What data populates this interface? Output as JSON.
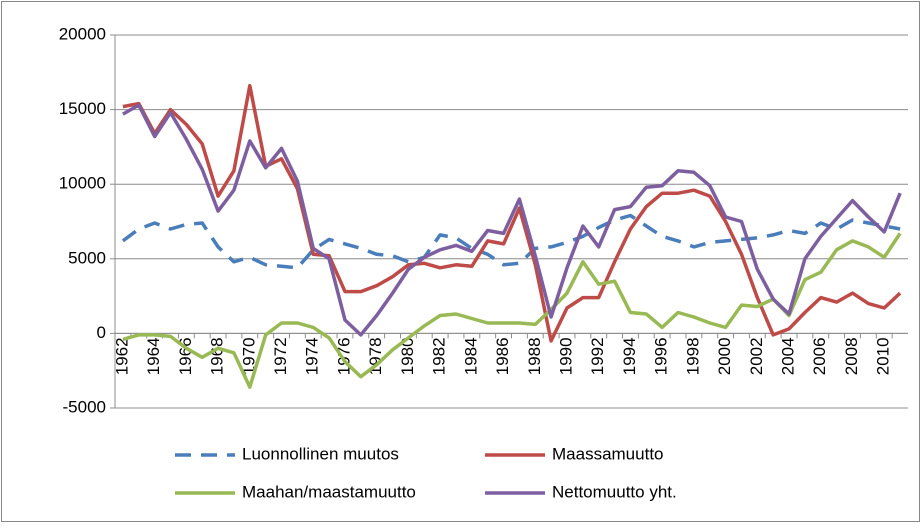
{
  "chart_data": {
    "type": "line",
    "categories": [
      1962,
      null,
      1964,
      null,
      1966,
      null,
      1968,
      null,
      1970,
      null,
      1972,
      null,
      1974,
      null,
      1976,
      null,
      1978,
      null,
      1980,
      null,
      1982,
      null,
      1984,
      null,
      1986,
      null,
      1988,
      null,
      1990,
      null,
      1992,
      null,
      1994,
      null,
      1996,
      null,
      1998,
      null,
      2000,
      null,
      2002,
      null,
      2004,
      null,
      2006,
      null,
      2008,
      null,
      2010,
      null
    ],
    "ylim": [
      -5000,
      20000
    ],
    "yticks": [
      -5000,
      0,
      5000,
      10000,
      15000,
      20000
    ],
    "grid": true,
    "series": [
      {
        "name": "Luonnollinen muutos",
        "color": "#4a7ebb",
        "dashed": true,
        "values": [
          6200,
          7000,
          7400,
          7000,
          7300,
          7400,
          5800,
          4800,
          5100,
          4600,
          4500,
          4400,
          5600,
          6300,
          6000,
          5700,
          5300,
          5200,
          4800,
          5100,
          6600,
          6400,
          5700,
          5300,
          4600,
          4700,
          5700,
          5800,
          6100,
          6500,
          7100,
          7600,
          7900,
          7200,
          6500,
          6200,
          5800,
          6100,
          6200,
          6300,
          6400,
          6600,
          6900,
          6700,
          7400,
          7000,
          7600,
          7400,
          7200,
          7000
        ]
      },
      {
        "name": "Maassamuutto",
        "color": "#be4b48",
        "values": [
          15200,
          15400,
          13400,
          15000,
          14000,
          12700,
          9200,
          10900,
          16600,
          11200,
          11700,
          9700,
          5300,
          5200,
          2800,
          2800,
          3200,
          3800,
          4600,
          4700,
          4400,
          4600,
          4500,
          6200,
          6000,
          8400,
          4600,
          -500,
          1700,
          2400,
          2400,
          4800,
          7000,
          8500,
          9400,
          9400,
          9600,
          9200,
          7500,
          5300,
          2400,
          -100,
          300,
          1400,
          2400,
          2100,
          2700,
          2000,
          1700,
          2700
        ]
      },
      {
        "name": "Maahan/maastamuutto",
        "color": "#98b954",
        "values": [
          -400,
          -100,
          -100,
          -200,
          -1000,
          -1600,
          -1000,
          -1300,
          -3600,
          -100,
          700,
          700,
          400,
          -300,
          -1900,
          -2900,
          -2100,
          -1100,
          -300,
          500,
          1200,
          1300,
          1000,
          700,
          700,
          700,
          600,
          1600,
          2700,
          4800,
          3300,
          3500,
          1400,
          1300,
          400,
          1400,
          1100,
          700,
          400,
          1900,
          1800,
          2300,
          1200,
          3600,
          4100,
          5600,
          6200,
          5800,
          5100,
          6700
        ]
      },
      {
        "name": "Nettomuutto yht.",
        "color": "#7d5fa0",
        "values": [
          14700,
          15300,
          13200,
          14800,
          13000,
          11000,
          8200,
          9600,
          12900,
          11100,
          12400,
          10200,
          5700,
          5000,
          900,
          -100,
          1200,
          2700,
          4300,
          5100,
          5600,
          5900,
          5500,
          6900,
          6700,
          9000,
          5200,
          1100,
          4400,
          7200,
          5800,
          8300,
          8500,
          9800,
          9900,
          10900,
          10800,
          9900,
          7800,
          7500,
          4300,
          2300,
          1300,
          5000,
          6500,
          7700,
          8900,
          7800,
          6800,
          9400
        ]
      }
    ]
  }
}
